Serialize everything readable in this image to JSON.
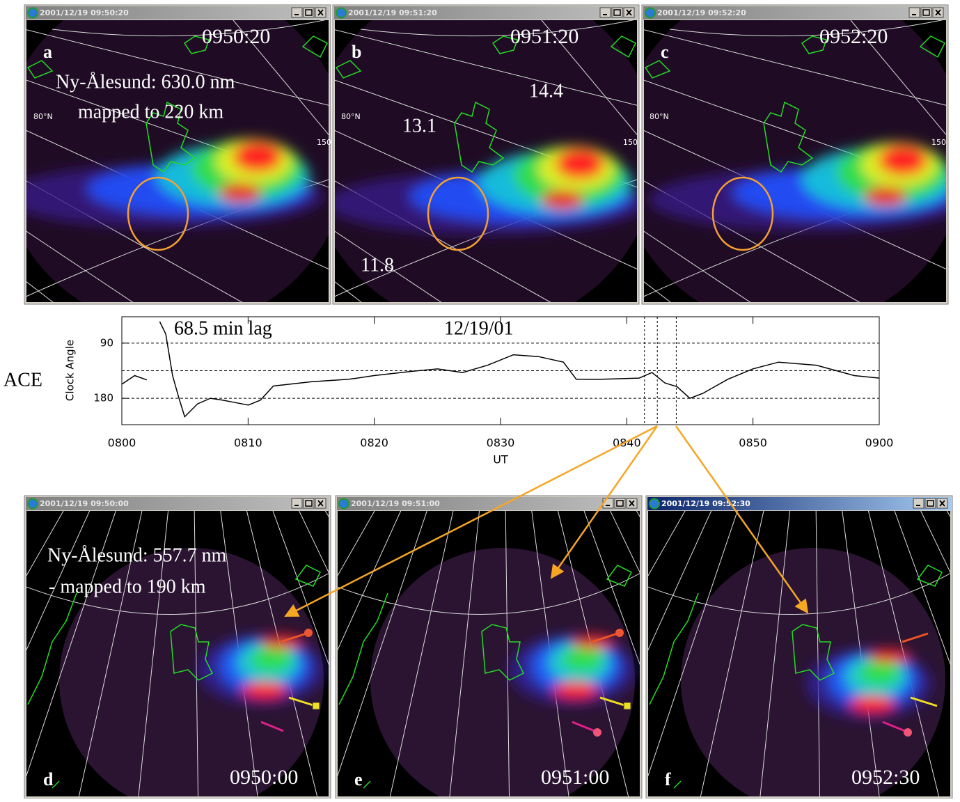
{
  "panels": [
    {
      "title": "2001/12/19 09:50:20",
      "letter": "a",
      "time": "0950:20",
      "labels": [
        "Ny-Ålesund:  630.0 nm",
        "mapped to 220 km",
        "80°N",
        "150"
      ]
    },
    {
      "title": "2001/12/19 09:51:20",
      "letter": "b",
      "time": "0951:20",
      "labels": [
        "14.4",
        "13.1",
        "11.8",
        "80°N",
        "150"
      ]
    },
    {
      "title": "2001/12/19 09:52:20",
      "letter": "c",
      "time": "0952:20",
      "labels": [
        "80°N",
        "150"
      ]
    },
    {
      "title": "2001/12/19 09:50:00",
      "letter": "d",
      "time": "0950:00",
      "labels": [
        "Ny-Ålesund:  557.7 nm",
        "-  mapped to 190 km"
      ]
    },
    {
      "title": "2001/12/19 09:51:00",
      "letter": "e",
      "time": "0951:00",
      "labels": []
    },
    {
      "title": "2001/12/19 09:52:30",
      "letter": "f",
      "time": "0952:30",
      "labels": []
    }
  ],
  "chart_data": {
    "type": "line",
    "side_label": "ACE",
    "annotations": [
      "68.5 min lag",
      "12/19/01"
    ],
    "ylabel": "Clock Angle",
    "xlabel": "UT",
    "x": [
      8.0,
      8.017,
      8.033,
      8.042,
      8.05,
      8.058,
      8.067,
      8.075,
      8.083,
      8.1,
      8.117,
      8.133,
      8.15,
      8.167,
      8.183,
      8.2,
      8.25,
      8.3,
      8.333,
      8.383,
      8.417,
      8.45,
      8.483,
      8.517,
      8.55,
      8.583,
      8.6,
      8.633,
      8.683,
      8.7,
      8.717,
      8.733,
      8.75,
      8.767,
      8.8,
      8.833,
      8.867,
      8.917,
      8.967,
      9.0
    ],
    "values": [
      157,
      143,
      150,
      null,
      55,
      75,
      143,
      178,
      210,
      189,
      180,
      183,
      187,
      191,
      183,
      160,
      153,
      149,
      143,
      136,
      132,
      138,
      126,
      109,
      112,
      121,
      149,
      149,
      147,
      138,
      155,
      161,
      180,
      172,
      149,
      132,
      121,
      126,
      143,
      147
    ],
    "color": "#000000",
    "xlim": [
      8.0,
      9.0
    ],
    "xticks": [
      {
        "value": 8.0,
        "label": "0800"
      },
      {
        "value": 8.1667,
        "label": "0810"
      },
      {
        "value": 8.3333,
        "label": "0820"
      },
      {
        "value": 8.5,
        "label": "0830"
      },
      {
        "value": 8.6667,
        "label": "0840"
      },
      {
        "value": 8.8333,
        "label": "0850"
      },
      {
        "value": 9.0,
        "label": "0900"
      }
    ],
    "ylim": [
      223,
      47
    ],
    "yticks": [
      90,
      180
    ],
    "grid": true,
    "reference_lines": [
      135
    ],
    "vlines": [
      8.69,
      8.707,
      8.732
    ]
  }
}
